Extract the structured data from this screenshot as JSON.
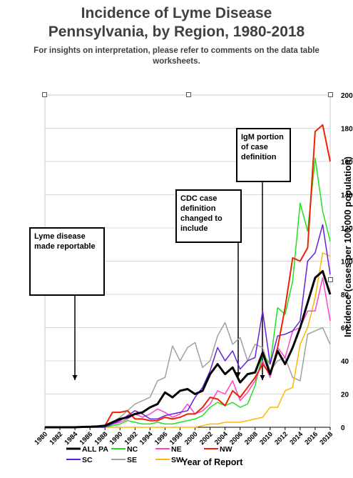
{
  "title_line1": "Incidence of Lyme Disease",
  "title_line2": "Pennsylvania, by Region, 1980-2018",
  "subtitle": "For insights on interpretation, please refer to comments on the data table worksheets.",
  "annotations": {
    "a1": "Lyme disease made reportable",
    "a2": "CDC case definition changed to include",
    "a3": "IgM portion of case definition"
  },
  "chart_data": {
    "type": "line",
    "title": "",
    "xlabel": "Year of Report",
    "ylabel": "Incidence (cases per 100,000 population)",
    "ylim": [
      0,
      200
    ],
    "y_ticks": [
      0,
      20,
      40,
      60,
      80,
      100,
      120,
      140,
      160,
      180,
      200
    ],
    "x": [
      1980,
      1981,
      1982,
      1983,
      1984,
      1985,
      1986,
      1987,
      1988,
      1989,
      1990,
      1991,
      1992,
      1993,
      1994,
      1995,
      1996,
      1997,
      1998,
      1999,
      2000,
      2001,
      2002,
      2003,
      2004,
      2005,
      2006,
      2007,
      2008,
      2009,
      2010,
      2011,
      2012,
      2013,
      2014,
      2015,
      2016,
      2017,
      2018
    ],
    "x_tick_labels": [
      "1980",
      "1982",
      "1984",
      "1986",
      "1988",
      "1990",
      "1992",
      "1994",
      "1996",
      "1998",
      "2000",
      "2002",
      "2004",
      "2006",
      "2008",
      "2010",
      "2012",
      "2014",
      "2016",
      "2018"
    ],
    "grid": "horizontal",
    "legend_position": "bottom",
    "series": [
      {
        "name": "ALL PA",
        "color": "#000000",
        "width": 3,
        "values": [
          0,
          0,
          0,
          0,
          0,
          0.2,
          0.3,
          0.5,
          1,
          3,
          5,
          6,
          8,
          9,
          12,
          14,
          21,
          18,
          22,
          23,
          20,
          22,
          32,
          38,
          32,
          36,
          27,
          32,
          33,
          45,
          32,
          46,
          38,
          48,
          60,
          75,
          90,
          94,
          80
        ]
      },
      {
        "name": "NC",
        "color": "#22e022",
        "width": 1.5,
        "values": [
          0,
          0,
          0,
          0,
          0,
          0,
          0,
          0,
          0,
          1,
          2,
          4,
          3,
          2,
          2,
          3,
          2,
          2,
          3,
          4,
          5,
          7,
          12,
          15,
          13,
          15,
          12,
          14,
          25,
          44,
          38,
          72,
          68,
          88,
          135,
          118,
          162,
          130,
          112
        ]
      },
      {
        "name": "NE",
        "color": "#ff44cc",
        "width": 1.5,
        "values": [
          0,
          0,
          0,
          0,
          0,
          0.1,
          0.2,
          0.3,
          0.6,
          2,
          3,
          5,
          8,
          6,
          8,
          11,
          9,
          6,
          8,
          14,
          8,
          10,
          14,
          22,
          20,
          28,
          16,
          21,
          28,
          40,
          30,
          48,
          42,
          58,
          60,
          70,
          70,
          90,
          64
        ]
      },
      {
        "name": "NW",
        "color": "#ee2200",
        "width": 2,
        "values": [
          0,
          0,
          0,
          0,
          0,
          0.2,
          0.4,
          0.6,
          1,
          9,
          9,
          10,
          5,
          5,
          4,
          4,
          6,
          5,
          6,
          8,
          8,
          12,
          18,
          17,
          13,
          22,
          18,
          24,
          30,
          38,
          32,
          48,
          72,
          102,
          100,
          108,
          178,
          182,
          160
        ]
      },
      {
        "name": "SC",
        "color": "#6620dd",
        "width": 1.5,
        "values": [
          0,
          0,
          0,
          0,
          0,
          0,
          0,
          0,
          0,
          2,
          4,
          7,
          10,
          8,
          5,
          5,
          7,
          8,
          9,
          10,
          18,
          24,
          34,
          48,
          40,
          46,
          35,
          40,
          42,
          70,
          38,
          55,
          56,
          58,
          64,
          100,
          105,
          122,
          92
        ]
      },
      {
        "name": "SE",
        "color": "#a0a0a0",
        "width": 1.5,
        "values": [
          0,
          0,
          0,
          0,
          0,
          0,
          0,
          0,
          0.5,
          3,
          6,
          10,
          14,
          16,
          18,
          28,
          30,
          49,
          40,
          48,
          51,
          36,
          40,
          55,
          63,
          50,
          54,
          40,
          50,
          48,
          34,
          40,
          42,
          30,
          28,
          56,
          58,
          60,
          50
        ]
      },
      {
        "name": "SW",
        "color": "#ffb800",
        "width": 1.5,
        "values": [
          0,
          0,
          0,
          0,
          0,
          0,
          0,
          0,
          0,
          0,
          0,
          0,
          0,
          0,
          0,
          0,
          0,
          0,
          0,
          0,
          0,
          1,
          2,
          2,
          3,
          3,
          3,
          4,
          5,
          6,
          12,
          12,
          22,
          24,
          50,
          60,
          78,
          105,
          103
        ]
      }
    ]
  }
}
